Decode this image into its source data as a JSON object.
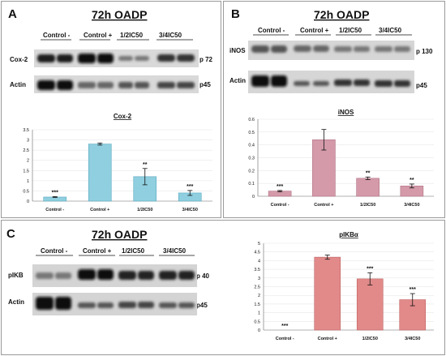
{
  "panels": [
    {
      "letter": "A",
      "title": "72h OADP",
      "blot": {
        "lanes": [
          "Control -",
          "Control +",
          "1/2IC50",
          "3/4IC50"
        ],
        "rows": [
          {
            "name": "Cox-2",
            "size": "p 72"
          },
          {
            "name": "Actin",
            "size": "p45"
          }
        ]
      }
    },
    {
      "letter": "B",
      "title": "72h OADP",
      "blot": {
        "lanes": [
          "Control -",
          "Control +",
          "1/2IC50",
          "3/4IC50"
        ],
        "rows": [
          {
            "name": "iNOS",
            "size": "p 130"
          },
          {
            "name": "Actin",
            "size": "p45"
          }
        ]
      }
    },
    {
      "letter": "C",
      "title": "72h OADP",
      "blot": {
        "lanes": [
          "Control -",
          "Control +",
          "1/2IC50",
          "3/4IC50"
        ],
        "rows": [
          {
            "name": "pIKB",
            "size": "p 40"
          },
          {
            "name": "Actin",
            "size": "p45"
          }
        ]
      }
    }
  ],
  "colors": {
    "cox2_bar": "#8fcfe0",
    "cox2_edge": "#5aa9bf",
    "inos_bar": "#d49aaa",
    "inos_edge": "#b06f82",
    "pikb_bar": "#e28a8a",
    "pikb_edge": "#c06060",
    "border": "#9a9a9a"
  },
  "chart_data": [
    {
      "type": "bar",
      "title": "Cox-2",
      "categories": [
        "Control -",
        "Control +",
        "1/2IC50",
        "3/4IC50"
      ],
      "values": [
        0.2,
        2.8,
        1.2,
        0.4
      ],
      "errors": [
        0.02,
        0.05,
        0.4,
        0.12
      ],
      "significance": [
        "***",
        "",
        "**",
        "***"
      ],
      "ylim": [
        0,
        3.5
      ],
      "yticks": [
        "0",
        "0.5",
        "1",
        "1.5",
        "2",
        "2.5",
        "3",
        "3.5"
      ],
      "grid": true
    },
    {
      "type": "bar",
      "title": "iNOS",
      "categories": [
        "Control -",
        "Control +",
        "1/2IC50",
        "3/4IC50"
      ],
      "values": [
        0.04,
        0.44,
        0.14,
        0.08
      ],
      "errors": [
        0.005,
        0.08,
        0.01,
        0.015
      ],
      "significance": [
        "***",
        "",
        "**",
        "**"
      ],
      "ylim": [
        0,
        0.6
      ],
      "yticks": [
        "0",
        "0.1",
        "0.2",
        "0.3",
        "0.4",
        "0.5",
        "0.6"
      ],
      "grid": true
    },
    {
      "type": "bar",
      "title": "pIKBα",
      "categories": [
        "Control -",
        "Control +",
        "1/2IC50",
        "3/4IC50"
      ],
      "values": [
        0,
        4.2,
        2.95,
        1.75
      ],
      "errors": [
        0,
        0.12,
        0.35,
        0.35
      ],
      "significance": [
        "***",
        "",
        "***",
        "***"
      ],
      "ylim": [
        0,
        5
      ],
      "yticks": [
        "0",
        "0.5",
        "1",
        "1.5",
        "2",
        "2.5",
        "3",
        "3.5",
        "4",
        "4.5",
        "5"
      ],
      "grid": true
    }
  ]
}
